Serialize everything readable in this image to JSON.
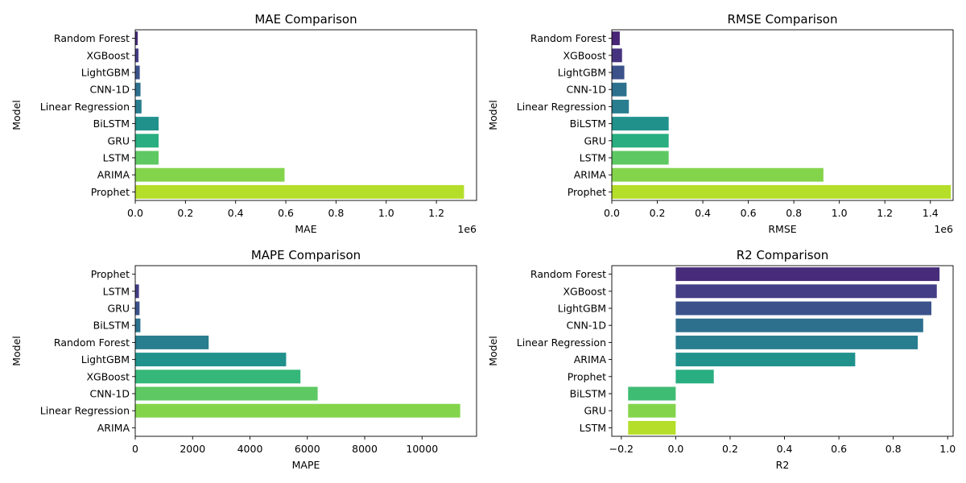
{
  "chart_data": [
    {
      "type": "bar",
      "orientation": "horizontal",
      "title": "MAE Comparison",
      "xlabel": "MAE",
      "ylabel": "Model",
      "offset_text": "1e6",
      "xlim": [
        0,
        1.36
      ],
      "xticks": [
        0,
        0.2,
        0.4,
        0.6,
        0.8,
        1.0,
        1.2
      ],
      "xtick_labels": [
        "0.0",
        "0.2",
        "0.4",
        "0.6",
        "0.8",
        "1.0",
        "1.2"
      ],
      "categories": [
        "Random Forest",
        "XGBoost",
        "LightGBM",
        "CNN-1D",
        "Linear Regression",
        "BiLSTM",
        "GRU",
        "LSTM",
        "ARIMA",
        "Prophet"
      ],
      "values": [
        0.01,
        0.013,
        0.018,
        0.021,
        0.025,
        0.093,
        0.093,
        0.093,
        0.595,
        1.31
      ],
      "colors": [
        "#472c7a",
        "#433e85",
        "#3b528b",
        "#2d708e",
        "#287d8e",
        "#21918c",
        "#28ae80",
        "#5ec962",
        "#84d44b",
        "#b5de2b"
      ],
      "grid": false
    },
    {
      "type": "bar",
      "orientation": "horizontal",
      "title": "RMSE Comparison",
      "xlabel": "RMSE",
      "ylabel": "Model",
      "offset_text": "1e6",
      "xlim": [
        0,
        1.5
      ],
      "xticks": [
        0,
        0.2,
        0.4,
        0.6,
        0.8,
        1.0,
        1.2,
        1.4
      ],
      "xtick_labels": [
        "0.0",
        "0.2",
        "0.4",
        "0.6",
        "0.8",
        "1.0",
        "1.2",
        "1.4"
      ],
      "categories": [
        "Random Forest",
        "XGBoost",
        "LightGBM",
        "CNN-1D",
        "Linear Regression",
        "BiLSTM",
        "GRU",
        "LSTM",
        "ARIMA",
        "Prophet"
      ],
      "values": [
        0.035,
        0.045,
        0.055,
        0.065,
        0.075,
        0.25,
        0.25,
        0.25,
        0.93,
        1.49
      ],
      "colors": [
        "#482576",
        "#46337f",
        "#3b528b",
        "#2d708e",
        "#287d8e",
        "#21918c",
        "#28ae80",
        "#5ec962",
        "#84d44b",
        "#b5de2b"
      ],
      "grid": false
    },
    {
      "type": "bar",
      "orientation": "horizontal",
      "title": "MAPE Comparison",
      "xlabel": "MAPE",
      "ylabel": "Model",
      "xlim": [
        0,
        11900
      ],
      "xticks": [
        0,
        2000,
        4000,
        6000,
        8000,
        10000
      ],
      "xtick_labels": [
        "0",
        "2000",
        "4000",
        "6000",
        "8000",
        "10000"
      ],
      "categories": [
        "Prophet",
        "LSTM",
        "GRU",
        "BiLSTM",
        "Random Forest",
        "LightGBM",
        "XGBoost",
        "CNN-1D",
        "Linear Regression",
        "ARIMA"
      ],
      "values": [
        0,
        130,
        150,
        180,
        2560,
        5260,
        5760,
        6360,
        11330,
        0
      ],
      "colors": [
        "#472c7a",
        "#433e85",
        "#3b528b",
        "#2c728e",
        "#287d8e",
        "#21918c",
        "#35b779",
        "#5ec962",
        "#84d44b",
        "#b5de2b"
      ],
      "grid": false
    },
    {
      "type": "bar",
      "orientation": "horizontal",
      "title": "R2 Comparison",
      "xlabel": "R2",
      "ylabel": "Model",
      "xlim": [
        -0.235,
        1.02
      ],
      "xticks": [
        -0.2,
        0,
        0.2,
        0.4,
        0.6,
        0.8,
        1.0
      ],
      "xtick_labels": [
        "−0.2",
        "0.0",
        "0.2",
        "0.4",
        "0.6",
        "0.8",
        "1.0"
      ],
      "categories": [
        "Random Forest",
        "XGBoost",
        "LightGBM",
        "CNN-1D",
        "Linear Regression",
        "ARIMA",
        "Prophet",
        "BiLSTM",
        "GRU",
        "LSTM"
      ],
      "values": [
        0.97,
        0.96,
        0.94,
        0.91,
        0.89,
        0.66,
        0.14,
        -0.175,
        -0.175,
        -0.175
      ],
      "colors": [
        "#472c7a",
        "#433e85",
        "#3b528b",
        "#2d708e",
        "#287d8e",
        "#21918c",
        "#28ae80",
        "#3fbc73",
        "#84d44b",
        "#b5de2b"
      ],
      "grid": false
    }
  ]
}
